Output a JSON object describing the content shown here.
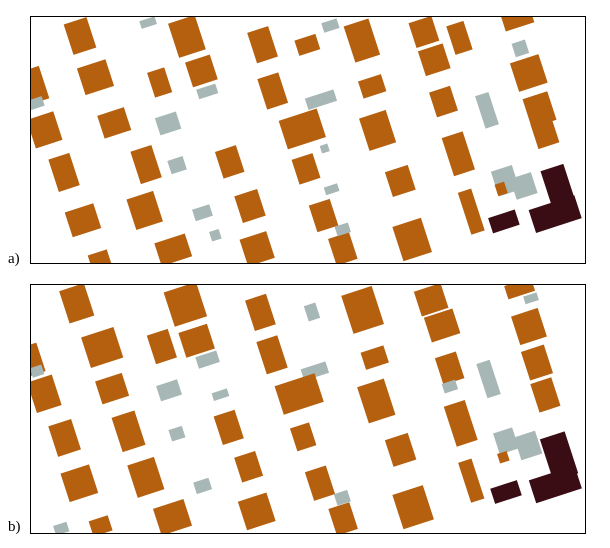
{
  "panels": [
    {
      "label": "a)"
    },
    {
      "label": "b)"
    }
  ],
  "colors": {
    "building_brown": "#b5600f",
    "building_gray": "#a7b7b6",
    "building_dark": "#3a0d14",
    "frame": "#000000",
    "background": "#ffffff"
  }
}
